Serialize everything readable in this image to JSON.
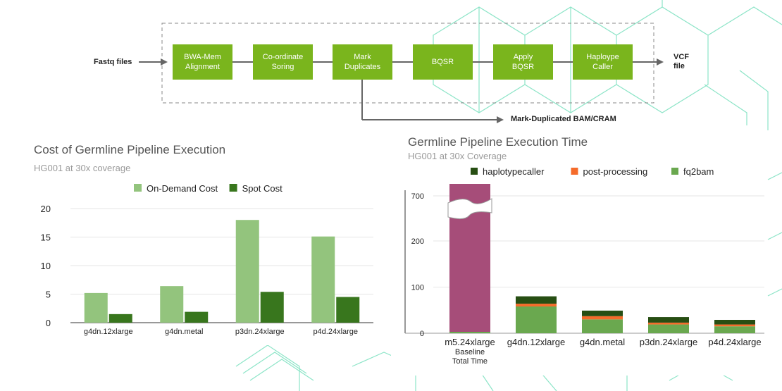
{
  "pipeline": {
    "input_label": "Fastq files",
    "stages": [
      "BWA-Mem\nAlignment",
      "Co-ordinate\nSoring",
      "Mark\nDuplicates",
      "BQSR",
      "Apply\nBQSR",
      "Haploype\nCaller"
    ],
    "output_label": "VCF\nfile",
    "branch_label": "Mark-Duplicated BAM/CRAM"
  },
  "chart_data": [
    {
      "type": "bar",
      "title": "Cost of Germline Pipeline Execution",
      "subtitle": "HG001 at 30x coverage",
      "categories": [
        "g4dn.12xlarge",
        "g4dn.metal",
        "p3dn.24xlarge",
        "p4d.24xlarge"
      ],
      "series": [
        {
          "name": "On-Demand Cost",
          "values": [
            5.2,
            6.4,
            18.0,
            15.1
          ],
          "color": "#93c47d"
        },
        {
          "name": "Spot Cost",
          "values": [
            1.5,
            1.9,
            5.4,
            4.5
          ],
          "color": "#38761d"
        }
      ],
      "ylim": [
        0,
        20
      ],
      "yticks": [
        0,
        5,
        10,
        15,
        20
      ],
      "grid": true,
      "legend": "top"
    },
    {
      "type": "bar",
      "stacked": true,
      "title": "Germline Pipeline Execution Time",
      "subtitle": "HG001 at 30x Coverage",
      "categories": [
        "m5.24xlarge\nBaseline\nTotal Time",
        "g4dn.12xlarge",
        "g4dn.metal",
        "p3dn.24xlarge",
        "p4d.24xlarge"
      ],
      "series": [
        {
          "name": "haplotypecaller",
          "values": [
            0,
            16,
            12,
            12,
            10
          ],
          "color": "#274e13"
        },
        {
          "name": "post-processing",
          "values": [
            0,
            6,
            7,
            4,
            4
          ],
          "color": "#f56b2a"
        },
        {
          "name": "fq2bam",
          "values": [
            0,
            58,
            30,
            19,
            15
          ],
          "color": "#6aa84f"
        }
      ],
      "baseline": {
        "name": "Baseline Total Time",
        "value": 700,
        "color": "#a64d79"
      },
      "yticks": [
        0,
        100,
        200,
        700
      ],
      "axis_break": "between 200 and 700",
      "grid": true,
      "legend": "top"
    }
  ]
}
